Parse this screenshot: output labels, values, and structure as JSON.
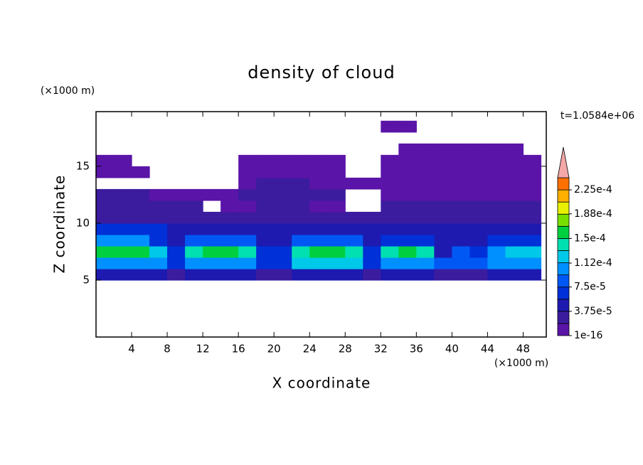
{
  "chart_data": {
    "type": "contour",
    "title": "density of cloud",
    "x_label": "X coordinate",
    "y_label": "Z coordinate",
    "x_unit": "(×1000 m)",
    "y_unit": "(×1000 m)",
    "annotation": "t=1.0584e+06",
    "xlim": [
      0,
      50.6
    ],
    "ylim": [
      0,
      19.8
    ],
    "xticks": [
      4,
      8,
      12,
      16,
      20,
      24,
      28,
      32,
      36,
      40,
      44,
      48
    ],
    "yticks": [
      5,
      10,
      15
    ],
    "x": [
      1,
      3,
      5,
      7,
      9,
      11,
      13,
      15,
      17,
      19,
      21,
      23,
      25,
      27,
      29,
      31,
      33,
      35,
      37,
      39,
      41,
      43,
      45,
      47,
      49
    ],
    "y": [
      5.5,
      6.5,
      7.5,
      8.5,
      9.5,
      10.5,
      11.5,
      12.5,
      13.5,
      14.5,
      15.5,
      16.5,
      17.5,
      18.5
    ],
    "values": [
      [
        4.7e-05,
        4.7e-05,
        4.7e-05,
        4.7e-05,
        2.8e-05,
        4.7e-05,
        4.7e-05,
        4.7e-05,
        4.7e-05,
        2.8e-05,
        2.8e-05,
        4.7e-05,
        4.7e-05,
        4.7e-05,
        4.7e-05,
        2.8e-05,
        4.7e-05,
        4.7e-05,
        4.7e-05,
        2.8e-05,
        2.8e-05,
        2.8e-05,
        4.7e-05,
        4.7e-05,
        4.7e-05
      ],
      [
        0.000103,
        0.000103,
        0.000103,
        0.000103,
        6.5e-05,
        0.000103,
        0.000103,
        0.000103,
        0.000103,
        6.5e-05,
        6.5e-05,
        0.00012,
        0.00012,
        0.00012,
        0.00012,
        6.5e-05,
        0.000103,
        0.000103,
        0.000103,
        8.4e-05,
        8.4e-05,
        8.4e-05,
        0.000103,
        0.000103,
        0.000103
      ],
      [
        0.00016,
        0.00016,
        0.00016,
        0.00012,
        6.5e-05,
        0.00014,
        0.00016,
        0.00016,
        0.00014,
        6.5e-05,
        6.5e-05,
        0.00014,
        0.00016,
        0.00016,
        0.00014,
        6.5e-05,
        0.00014,
        0.00016,
        0.00014,
        4.7e-05,
        8.4e-05,
        6.5e-05,
        0.000103,
        0.00012,
        0.00012
      ],
      [
        0.000103,
        0.000103,
        0.000103,
        6.5e-05,
        4.7e-05,
        8.4e-05,
        8.4e-05,
        8.4e-05,
        8.4e-05,
        4.7e-05,
        4.7e-05,
        8.4e-05,
        8.4e-05,
        8.4e-05,
        8.4e-05,
        4.7e-05,
        6.5e-05,
        6.5e-05,
        6.5e-05,
        4.7e-05,
        4.7e-05,
        4.7e-05,
        6.5e-05,
        6.5e-05,
        6.5e-05
      ],
      [
        6.5e-05,
        6.5e-05,
        6.5e-05,
        6.5e-05,
        4.7e-05,
        4.7e-05,
        4.7e-05,
        4.7e-05,
        4.7e-05,
        4.7e-05,
        4.7e-05,
        4.7e-05,
        4.7e-05,
        4.7e-05,
        4.7e-05,
        4.7e-05,
        4.7e-05,
        4.7e-05,
        4.7e-05,
        4.7e-05,
        4.7e-05,
        4.7e-05,
        4.7e-05,
        4.7e-05,
        4.7e-05
      ],
      [
        2.8e-05,
        2.8e-05,
        2.8e-05,
        2.8e-05,
        2.8e-05,
        2.8e-05,
        2.8e-05,
        2.8e-05,
        2.8e-05,
        2.8e-05,
        2.8e-05,
        2.8e-05,
        2.8e-05,
        2.8e-05,
        2.8e-05,
        2.8e-05,
        2.8e-05,
        2.8e-05,
        2.8e-05,
        2.8e-05,
        2.8e-05,
        2.8e-05,
        2.8e-05,
        2.8e-05,
        2.8e-05
      ],
      [
        2.8e-05,
        2.8e-05,
        2.8e-05,
        2.8e-05,
        2.8e-05,
        2.8e-05,
        null,
        1e-05,
        1e-05,
        2.8e-05,
        2.8e-05,
        2.8e-05,
        1e-05,
        1e-05,
        null,
        null,
        2.8e-05,
        2.8e-05,
        2.8e-05,
        2.8e-05,
        2.8e-05,
        2.8e-05,
        2.8e-05,
        2.8e-05,
        2.8e-05
      ],
      [
        2.8e-05,
        2.8e-05,
        2.8e-05,
        1e-05,
        1e-05,
        1e-05,
        1e-05,
        1e-05,
        2.8e-05,
        2.8e-05,
        2.8e-05,
        2.8e-05,
        2.8e-05,
        2.8e-05,
        null,
        null,
        1e-05,
        1e-05,
        1e-05,
        1e-05,
        1e-05,
        1e-05,
        1e-05,
        1e-05,
        1e-05
      ],
      [
        null,
        null,
        null,
        null,
        null,
        null,
        null,
        null,
        1e-05,
        2.8e-05,
        2.8e-05,
        2.8e-05,
        1e-05,
        1e-05,
        1e-05,
        1e-05,
        1e-05,
        1e-05,
        1e-05,
        1e-05,
        1e-05,
        1e-05,
        1e-05,
        1e-05,
        1e-05
      ],
      [
        1e-05,
        1e-05,
        1e-05,
        null,
        null,
        null,
        null,
        null,
        1e-05,
        1e-05,
        1e-05,
        1e-05,
        1e-05,
        1e-05,
        null,
        null,
        1e-05,
        1e-05,
        1e-05,
        1e-05,
        1e-05,
        1e-05,
        1e-05,
        1e-05,
        1e-05
      ],
      [
        1e-05,
        1e-05,
        null,
        null,
        null,
        null,
        null,
        null,
        1e-05,
        1e-05,
        1e-05,
        1e-05,
        1e-05,
        1e-05,
        null,
        null,
        1e-05,
        1e-05,
        1e-05,
        1e-05,
        1e-05,
        1e-05,
        1e-05,
        1e-05,
        1e-05
      ],
      [
        null,
        null,
        null,
        null,
        null,
        null,
        null,
        null,
        null,
        null,
        null,
        null,
        null,
        null,
        null,
        null,
        null,
        1e-05,
        1e-05,
        1e-05,
        1e-05,
        1e-05,
        1e-05,
        1e-05,
        null
      ],
      [
        null,
        null,
        null,
        null,
        null,
        null,
        null,
        null,
        null,
        null,
        null,
        null,
        null,
        null,
        null,
        null,
        null,
        null,
        null,
        null,
        null,
        null,
        null,
        null,
        null
      ],
      [
        null,
        null,
        null,
        null,
        null,
        null,
        null,
        null,
        null,
        null,
        null,
        null,
        null,
        null,
        null,
        null,
        1e-05,
        1e-05,
        null,
        null,
        null,
        null,
        null,
        null,
        null
      ]
    ],
    "levels": [
      1e-16,
      1.875e-05,
      3.75e-05,
      5.625e-05,
      7.5e-05,
      9.375e-05,
      0.0001125,
      0.00013125,
      0.00015,
      0.00016875,
      0.0001875,
      0.00020625,
      0.000225,
      0.00024375
    ],
    "colors": [
      "#5a14a8",
      "#3c1c9e",
      "#1e1ab0",
      "#0030d8",
      "#0058f4",
      "#0090ff",
      "#00c8e8",
      "#00e0b0",
      "#00d040",
      "#78e000",
      "#e8f000",
      "#ffb000",
      "#ff7000"
    ],
    "over_color": "#f4a8a8",
    "colorbar_ticks": [
      {
        "value": 1e-16,
        "label": "1e-16"
      },
      {
        "value": 3.75e-05,
        "label": "3.75e-5"
      },
      {
        "value": 7.5e-05,
        "label": "7.5e-5"
      },
      {
        "value": 0.000112,
        "label": "1.12e-4"
      },
      {
        "value": 0.00015,
        "label": "1.5e-4"
      },
      {
        "value": 0.000188,
        "label": "1.88e-4"
      },
      {
        "value": 0.000225,
        "label": "2.25e-4"
      }
    ]
  }
}
